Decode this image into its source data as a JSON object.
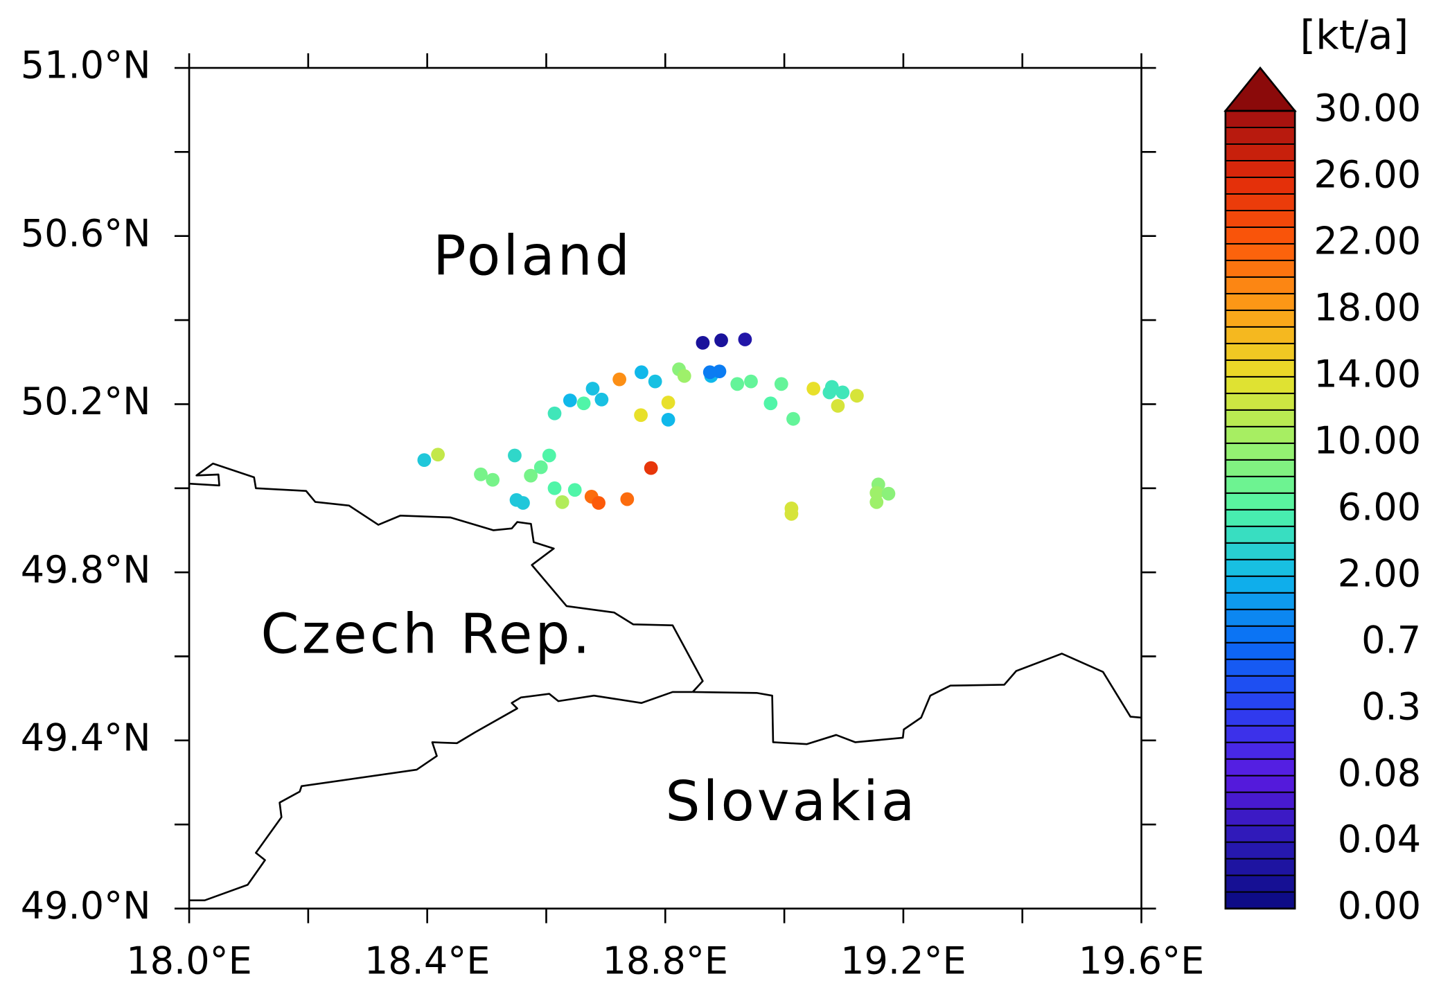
{
  "chart_data": {
    "type": "scatter",
    "xlim": [
      18.0,
      19.6
    ],
    "ylim": [
      49.0,
      51.0
    ],
    "xticks": [
      {
        "value": 18.0,
        "label": "18.0°E"
      },
      {
        "value": 18.4,
        "label": "18.4°E"
      },
      {
        "value": 18.8,
        "label": "18.8°E"
      },
      {
        "value": 19.2,
        "label": "19.2°E"
      },
      {
        "value": 19.6,
        "label": "19.6°E"
      }
    ],
    "yticks": [
      {
        "value": 49.0,
        "label": "49.0°N"
      },
      {
        "value": 49.4,
        "label": "49.4°N"
      },
      {
        "value": 49.8,
        "label": "49.8°N"
      },
      {
        "value": 50.2,
        "label": "50.2°N"
      },
      {
        "value": 50.6,
        "label": "50.6°N"
      },
      {
        "value": 51.0,
        "label": "51.0°N"
      }
    ],
    "x_minor_ticks": [
      18.2,
      18.6,
      19.0,
      19.4
    ],
    "y_minor_ticks": [
      49.2,
      49.6,
      50.0,
      50.4,
      50.8
    ],
    "annotations": [
      "Poland",
      "Czech Rep.",
      "Slovakia"
    ],
    "x": [
      18.863,
      18.894,
      18.934,
      18.723,
      18.678,
      18.64,
      18.693,
      18.663,
      18.614,
      18.76,
      18.783,
      18.823,
      18.832,
      18.877,
      18.891,
      18.875,
      18.759,
      18.805,
      18.805,
      18.921,
      18.944,
      18.995,
      18.977,
      19.015,
      19.049,
      19.08,
      19.076,
      19.098,
      19.09,
      19.122,
      18.395,
      18.418,
      18.547,
      18.605,
      18.49,
      18.51,
      18.574,
      18.591,
      18.614,
      18.648,
      18.627,
      18.55,
      18.561,
      18.676,
      18.688,
      18.736,
      18.776,
      19.012,
      19.012,
      19.158,
      19.155,
      19.155,
      19.175
    ],
    "y": [
      50.346,
      50.352,
      50.354,
      50.259,
      50.237,
      50.209,
      50.211,
      50.202,
      50.178,
      50.276,
      50.254,
      50.283,
      50.267,
      50.267,
      50.278,
      50.276,
      50.174,
      50.204,
      50.163,
      50.248,
      50.254,
      50.248,
      50.202,
      50.165,
      50.237,
      50.241,
      50.228,
      50.228,
      50.196,
      50.22,
      50.067,
      50.08,
      50.078,
      50.078,
      50.033,
      50.02,
      50.03,
      50.05,
      50.0,
      49.996,
      49.967,
      49.972,
      49.965,
      49.98,
      49.965,
      49.974,
      50.048,
      49.952,
      49.939,
      50.009,
      49.989,
      49.967,
      49.987
    ],
    "values": [
      0.02,
      0.02,
      0.03,
      19,
      2.5,
      2,
      2.5,
      6,
      5,
      2,
      2.5,
      9,
      10,
      2,
      1,
      1,
      14,
      14,
      2,
      7,
      7,
      7,
      6,
      7,
      14,
      5,
      5,
      5,
      13,
      13,
      3,
      12,
      4,
      6,
      8,
      8,
      8,
      7,
      6,
      6,
      11,
      3,
      3,
      21,
      22,
      21,
      25,
      13,
      13,
      9,
      10,
      10,
      9
    ],
    "colorbar": {
      "title": "[kt/a]",
      "ticks": [
        {
          "value": 0,
          "label": "0.00"
        },
        {
          "value": 0.04,
          "label": "0.04"
        },
        {
          "value": 0.08,
          "label": "0.08"
        },
        {
          "value": 0.3,
          "label": "0.3"
        },
        {
          "value": 0.7,
          "label": "0.7"
        },
        {
          "value": 2,
          "label": "2.00"
        },
        {
          "value": 6,
          "label": "6.00"
        },
        {
          "value": 10,
          "label": "10.00"
        },
        {
          "value": 14,
          "label": "14.00"
        },
        {
          "value": 18,
          "label": "18.00"
        },
        {
          "value": 22,
          "label": "22.00"
        },
        {
          "value": 26,
          "label": "26.00"
        },
        {
          "value": 30,
          "label": "30.00"
        }
      ],
      "colors": [
        "#0a0a80",
        "#2a1ab5",
        "#5a1ae0",
        "#2a3ef0",
        "#0a6af5",
        "#10b8ea",
        "#50f5a8",
        "#9ef06a",
        "#e8e02a",
        "#fca018",
        "#fc5a0a",
        "#e02a0a",
        "#a01010"
      ],
      "over_color": "#8b0a0a"
    }
  }
}
